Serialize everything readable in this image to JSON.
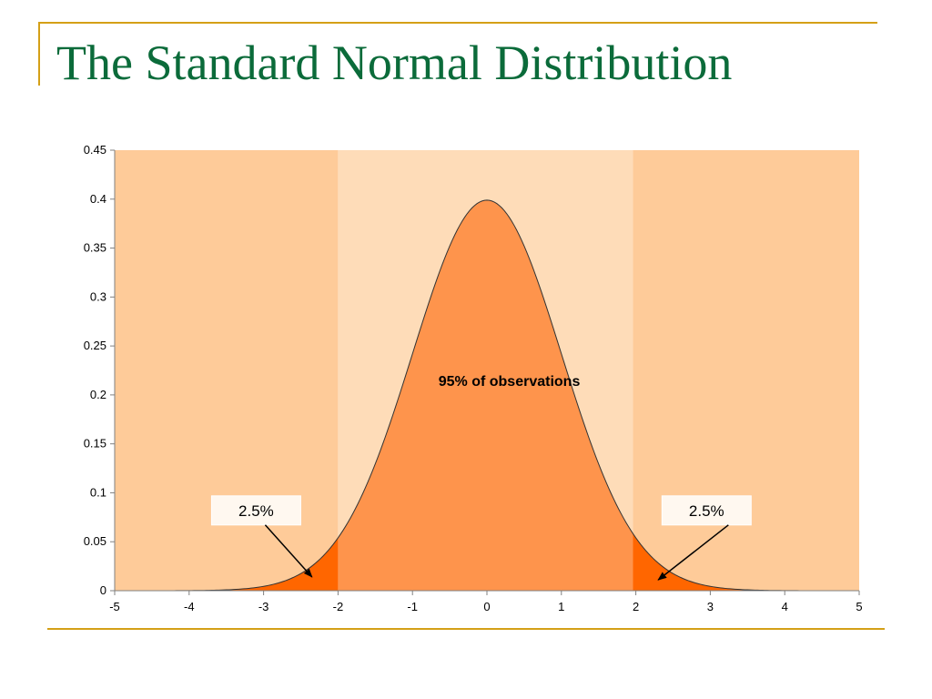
{
  "slide": {
    "title": "The Standard Normal Distribution",
    "accent_color": "#d4a017",
    "title_color": "#0b6b3a"
  },
  "chart_data": {
    "type": "area",
    "title": "",
    "xlabel": "",
    "ylabel": "",
    "xlim": [
      -5,
      5
    ],
    "ylim": [
      0,
      0.45
    ],
    "grid": false,
    "x_ticks": [
      "-5",
      "-4",
      "-3",
      "-2",
      "-1",
      "0",
      "1",
      "2",
      "3",
      "4",
      "5"
    ],
    "y_ticks": [
      "0",
      "0.05",
      "0.1",
      "0.15",
      "0.2",
      "0.25",
      "0.3",
      "0.35",
      "0.4",
      "0.45"
    ],
    "x_tick_values": [
      -5,
      -4,
      -3,
      -2,
      -1,
      0,
      1,
      2,
      3,
      4,
      5
    ],
    "y_tick_values": [
      0,
      0.05,
      0.1,
      0.15,
      0.2,
      0.25,
      0.3,
      0.35,
      0.4,
      0.45
    ],
    "curve": {
      "x": [
        -5,
        -4.5,
        -4,
        -3.5,
        -3,
        -2.5,
        -2,
        -1.5,
        -1,
        -0.5,
        0,
        0.5,
        1,
        1.5,
        2,
        2.5,
        3,
        3.5,
        4,
        4.5,
        5
      ],
      "y": [
        0.0,
        0.0,
        0.0001,
        0.0009,
        0.0044,
        0.0175,
        0.054,
        0.1295,
        0.242,
        0.3521,
        0.3989,
        0.3521,
        0.242,
        0.1295,
        0.054,
        0.0175,
        0.0044,
        0.0009,
        0.0001,
        0.0,
        0.0
      ]
    },
    "regions": [
      {
        "x_start": -5,
        "x_end": -2,
        "background": "#fecb99",
        "fill": "#ff6600"
      },
      {
        "x_start": -2,
        "x_end": 1.96,
        "background": "#fedcb8",
        "fill": "#fe944c"
      },
      {
        "x_start": 1.96,
        "x_end": 5,
        "background": "#fecb99",
        "fill": "#ff6600"
      }
    ],
    "annotations": [
      {
        "text": "95% of observations",
        "x": 0.3,
        "y": 0.209
      },
      {
        "text": "2.5%",
        "box_x": -3.1,
        "box_y": 0.082,
        "arrow_to_x": -2.35,
        "arrow_to_y": 0.014
      },
      {
        "text": "2.5%",
        "box_x": 2.95,
        "box_y": 0.082,
        "arrow_to_x": 2.3,
        "arrow_to_y": 0.011
      }
    ]
  }
}
